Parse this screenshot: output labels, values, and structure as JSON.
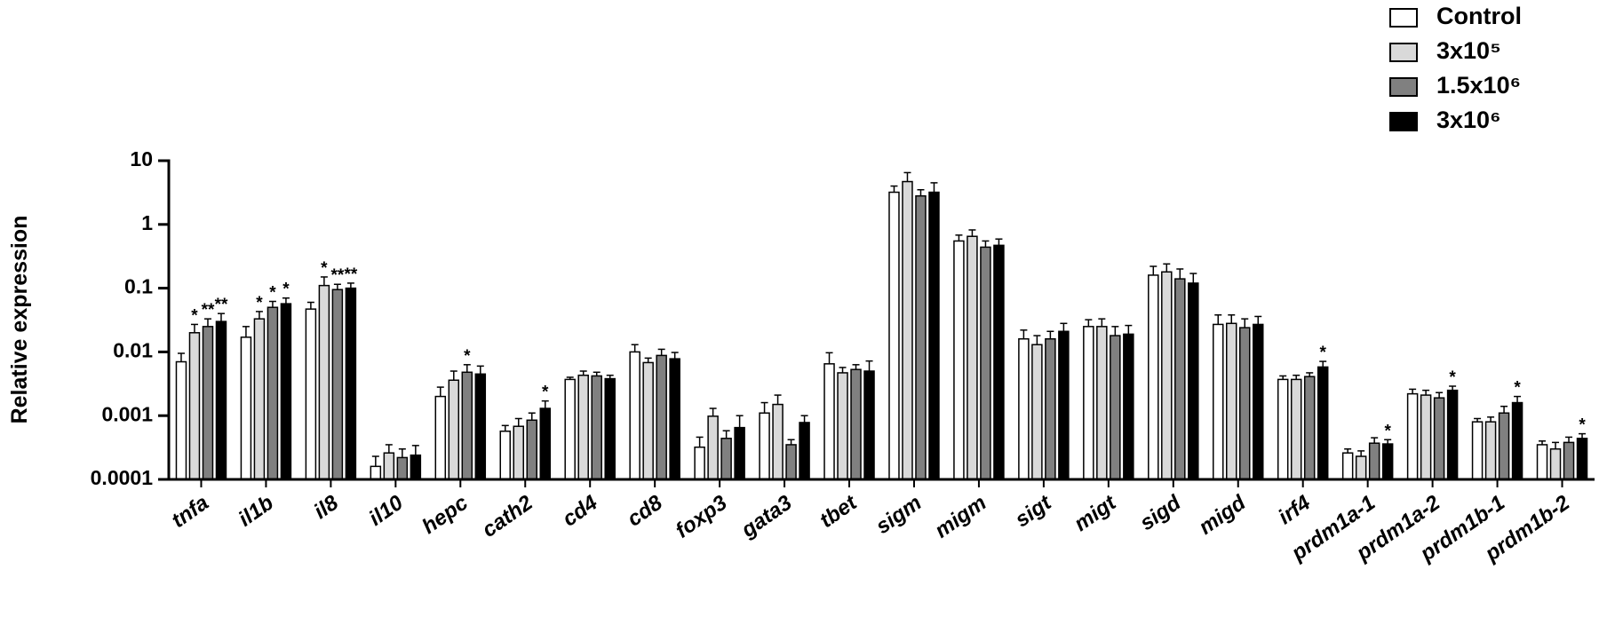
{
  "chart_data": {
    "type": "bar",
    "y_label": "Relative expression",
    "log_scale": true,
    "ylim": [
      0.0001,
      10
    ],
    "yticks": [
      0.0001,
      0.001,
      0.01,
      0.1,
      1,
      10
    ],
    "legend": "top-right",
    "categories": [
      "tnfa",
      "il1b",
      "il8",
      "il10",
      "hepc",
      "cath2",
      "cd4",
      "cd8",
      "foxp3",
      "gata3",
      "tbet",
      "sigm",
      "migm",
      "sigt",
      "migt",
      "sigd",
      "migd",
      "irf4",
      "prdm1a-1",
      "prdm1a-2",
      "prdm1b-1",
      "prdm1b-2"
    ],
    "series": [
      {
        "name": "Control",
        "color": "#ffffff",
        "values": [
          0.007,
          0.017,
          0.047,
          0.00016,
          0.002,
          0.00057,
          0.0037,
          0.01,
          0.00032,
          0.0011,
          0.0065,
          3.2,
          0.55,
          0.016,
          0.025,
          0.16,
          0.027,
          0.0037,
          0.00026,
          0.0022,
          0.0008,
          0.00035
        ],
        "errors": [
          0.0025,
          0.008,
          0.013,
          7e-05,
          0.0008,
          0.00013,
          0.0003,
          0.003,
          0.00014,
          0.0005,
          0.0032,
          0.8,
          0.13,
          0.006,
          0.007,
          0.06,
          0.011,
          0.0005,
          4e-05,
          0.0004,
          0.0001,
          5e-05
        ],
        "significance": [
          null,
          null,
          null,
          null,
          null,
          null,
          null,
          null,
          null,
          null,
          null,
          null,
          null,
          null,
          null,
          null,
          null,
          null,
          null,
          null,
          null,
          null
        ]
      },
      {
        "name": "3x10⁵",
        "color": "#d9d9d9",
        "values": [
          0.02,
          0.033,
          0.11,
          0.00026,
          0.0036,
          0.00068,
          0.0043,
          0.0068,
          0.00098,
          0.0015,
          0.0047,
          4.7,
          0.65,
          0.013,
          0.025,
          0.18,
          0.028,
          0.0037,
          0.00023,
          0.0021,
          0.0008,
          0.0003
        ],
        "errors": [
          0.007,
          0.01,
          0.04,
          9e-05,
          0.0014,
          0.00022,
          0.0007,
          0.0012,
          0.00032,
          0.0006,
          0.001,
          1.8,
          0.17,
          0.005,
          0.008,
          0.06,
          0.01,
          0.0006,
          5e-05,
          0.0004,
          0.00015,
          8e-05
        ],
        "significance": [
          "*",
          "*",
          "*",
          null,
          null,
          null,
          null,
          null,
          null,
          null,
          null,
          null,
          null,
          null,
          null,
          null,
          null,
          null,
          null,
          null,
          null,
          null
        ]
      },
      {
        "name": "1.5x10⁶",
        "color": "#808080",
        "values": [
          0.025,
          0.05,
          0.095,
          0.00022,
          0.0048,
          0.00085,
          0.0042,
          0.0088,
          0.00044,
          0.00035,
          0.0053,
          2.8,
          0.44,
          0.016,
          0.018,
          0.14,
          0.024,
          0.0041,
          0.00037,
          0.0019,
          0.0011,
          0.00038
        ],
        "errors": [
          0.008,
          0.012,
          0.02,
          8e-05,
          0.0015,
          0.00025,
          0.0006,
          0.0022,
          0.00014,
          7e-05,
          0.001,
          0.7,
          0.11,
          0.005,
          0.007,
          0.06,
          0.009,
          0.0006,
          8e-05,
          0.0004,
          0.0003,
          8e-05
        ],
        "significance": [
          "**",
          "*",
          "**",
          null,
          "*",
          null,
          null,
          null,
          null,
          null,
          null,
          null,
          null,
          null,
          null,
          null,
          null,
          null,
          null,
          null,
          null,
          null
        ]
      },
      {
        "name": "3x10⁶",
        "color": "#000000",
        "values": [
          0.03,
          0.057,
          0.1,
          0.00024,
          0.0045,
          0.0013,
          0.0038,
          0.0078,
          0.00065,
          0.00078,
          0.005,
          3.2,
          0.47,
          0.021,
          0.019,
          0.12,
          0.027,
          0.0058,
          0.00036,
          0.0025,
          0.0016,
          0.00044
        ],
        "errors": [
          0.01,
          0.013,
          0.02,
          0.0001,
          0.0015,
          0.0004,
          0.0005,
          0.002,
          0.00035,
          0.00022,
          0.0022,
          1.3,
          0.12,
          0.007,
          0.007,
          0.05,
          0.009,
          0.0013,
          6e-05,
          0.0004,
          0.0004,
          8e-05
        ],
        "significance": [
          "**",
          "*",
          "**",
          null,
          null,
          "*",
          null,
          null,
          null,
          null,
          null,
          null,
          null,
          null,
          null,
          null,
          null,
          "*",
          "*",
          "*",
          "*",
          "*"
        ]
      }
    ]
  }
}
